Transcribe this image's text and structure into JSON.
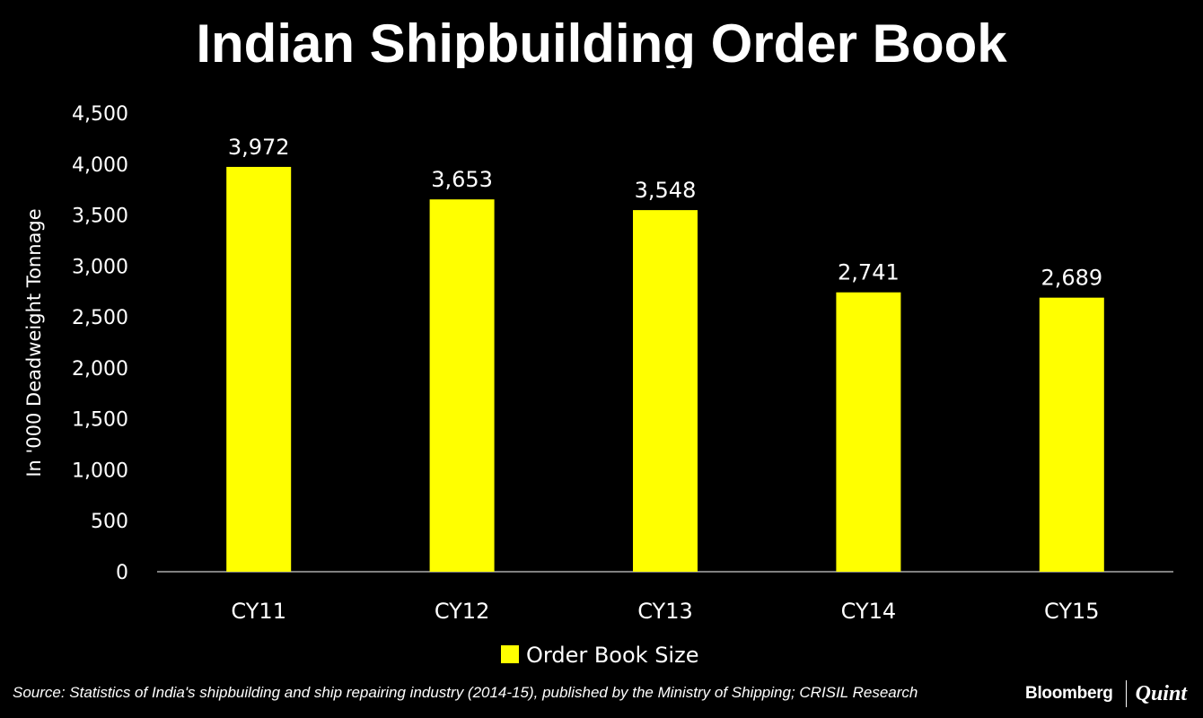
{
  "chart_data": {
    "type": "bar",
    "title": "Indian Shipbuilding Order Book",
    "ylabel": "In '000 Deadweight Tonnage",
    "xlabel": "",
    "categories": [
      "CY11",
      "CY12",
      "CY13",
      "CY14",
      "CY15"
    ],
    "series": [
      {
        "name": "Order Book Size",
        "values": [
          3972,
          3653,
          3548,
          2741,
          2689
        ],
        "value_labels": [
          "3,972",
          "3,653",
          "3,548",
          "2,741",
          "2,689"
        ],
        "color": "#ffff00"
      }
    ],
    "ylim": [
      0,
      4500
    ],
    "y_ticks": [
      0,
      500,
      1000,
      1500,
      2000,
      2500,
      3000,
      3500,
      4000,
      4500
    ],
    "y_tick_labels": [
      "0",
      "500",
      "1,000",
      "1,500",
      "2,000",
      "2,500",
      "3,000",
      "3,500",
      "4,000",
      "4,500"
    ],
    "grid": false,
    "legend_position": "bottom",
    "background": "#000000",
    "text_color": "#ffffff"
  },
  "source": "Source: Statistics of India's shipbuilding and ship repairing industry (2014-15), published by the Ministry of Shipping; CRISIL Research",
  "branding": {
    "left": "Bloomberg",
    "right": "Quint"
  }
}
